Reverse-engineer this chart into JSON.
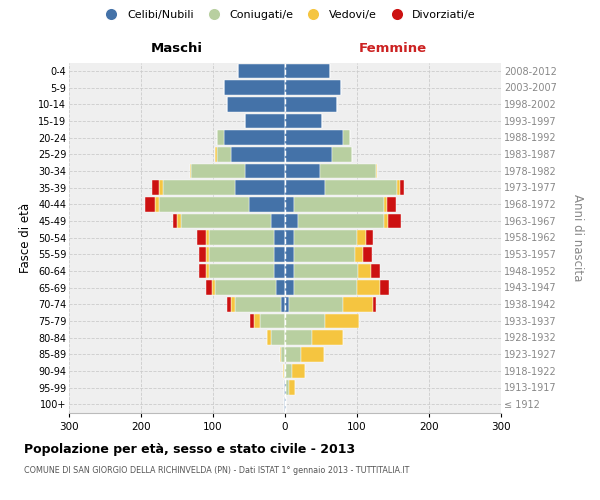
{
  "age_groups": [
    "100+",
    "95-99",
    "90-94",
    "85-89",
    "80-84",
    "75-79",
    "70-74",
    "65-69",
    "60-64",
    "55-59",
    "50-54",
    "45-49",
    "40-44",
    "35-39",
    "30-34",
    "25-29",
    "20-24",
    "15-19",
    "10-14",
    "5-9",
    "0-4"
  ],
  "birth_years": [
    "≤ 1912",
    "1913-1917",
    "1918-1922",
    "1923-1927",
    "1928-1932",
    "1933-1937",
    "1938-1942",
    "1943-1947",
    "1948-1952",
    "1953-1957",
    "1958-1962",
    "1963-1967",
    "1968-1972",
    "1973-1977",
    "1978-1982",
    "1983-1987",
    "1988-1992",
    "1993-1997",
    "1998-2002",
    "2003-2007",
    "2008-2012"
  ],
  "maschi_celibi": [
    1,
    1,
    0,
    0,
    0,
    0,
    5,
    12,
    15,
    15,
    15,
    20,
    50,
    70,
    55,
    75,
    85,
    55,
    80,
    85,
    65
  ],
  "maschi_coniugati": [
    0,
    0,
    2,
    5,
    20,
    35,
    65,
    85,
    90,
    90,
    90,
    125,
    125,
    100,
    75,
    20,
    10,
    0,
    0,
    0,
    0
  ],
  "maschi_vedovi": [
    0,
    0,
    1,
    2,
    5,
    8,
    5,
    5,
    5,
    5,
    5,
    5,
    5,
    5,
    2,
    2,
    0,
    0,
    0,
    0,
    0
  ],
  "maschi_divorziati": [
    0,
    0,
    0,
    0,
    0,
    5,
    5,
    8,
    10,
    10,
    12,
    5,
    15,
    10,
    0,
    0,
    0,
    0,
    0,
    0,
    0
  ],
  "femmine_nubili": [
    1,
    1,
    0,
    0,
    0,
    0,
    5,
    12,
    12,
    12,
    12,
    18,
    12,
    55,
    48,
    65,
    80,
    52,
    72,
    78,
    62
  ],
  "femmine_coniugate": [
    0,
    5,
    10,
    22,
    38,
    55,
    75,
    88,
    90,
    85,
    88,
    120,
    125,
    100,
    78,
    28,
    10,
    0,
    0,
    0,
    0
  ],
  "femmine_vedove": [
    0,
    8,
    18,
    32,
    42,
    48,
    42,
    32,
    18,
    12,
    12,
    5,
    5,
    5,
    2,
    0,
    0,
    0,
    0,
    0,
    0
  ],
  "femmine_divorziate": [
    0,
    0,
    0,
    0,
    0,
    0,
    5,
    12,
    12,
    12,
    10,
    18,
    12,
    5,
    0,
    0,
    0,
    0,
    0,
    0,
    0
  ],
  "colors": {
    "celibi": "#4472a8",
    "coniugati": "#b8cfa0",
    "vedovi": "#f5c540",
    "divorziati": "#cc1111"
  },
  "title": "Popolazione per età, sesso e stato civile - 2013",
  "subtitle": "COMUNE DI SAN GIORGIO DELLA RICHINVELDA (PN) - Dati ISTAT 1° gennaio 2013 - TUTTITALIA.IT",
  "maschi_label": "Maschi",
  "femmine_label": "Femmine",
  "ylabel_left": "Fasce di età",
  "ylabel_right": "Anni di nascita",
  "xlim": 300,
  "bg_color": "#ffffff",
  "plot_bg": "#efefef",
  "grid_color": "#cccccc",
  "legend_labels": [
    "Celibi/Nubili",
    "Coniugati/e",
    "Vedovi/e",
    "Divorziati/e"
  ]
}
